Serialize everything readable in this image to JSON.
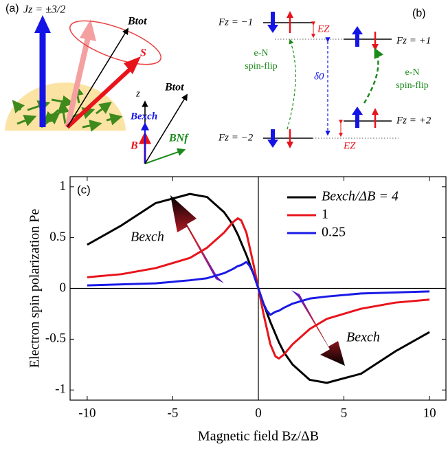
{
  "panel_a": {
    "label": "(a)",
    "jz": "Jz = ±3/2",
    "btot": "Btot",
    "s": "S",
    "z": "z",
    "btot_inset": "Btot",
    "bexch": "Bexch",
    "b": "B",
    "bnf": "BNf"
  },
  "panel_b": {
    "label": "(b)",
    "fz_m1": "Fz = −1",
    "fz_p1": "Fz = +1",
    "fz_m2": "Fz = −2",
    "fz_p2": "Fz = +2",
    "ez_top": "EZ",
    "ez_bottom": "EZ",
    "flip_left": [
      "e-N",
      "spin-flip"
    ],
    "flip_right": [
      "e-N",
      "spin-flip"
    ],
    "delta": "δ0"
  },
  "chart_data": {
    "type": "line",
    "panel_label": "(c)",
    "x_label": "Magnetic field Bz/ΔB",
    "y_label": "Electron spin polarization Pe",
    "annotations": [
      "Bexch",
      "Bexch"
    ],
    "x": [
      -10,
      -8,
      -6,
      -4,
      -3,
      -2,
      -1.5,
      -1.2,
      -1,
      -0.7,
      -0.5,
      -0.3,
      0,
      0.3,
      0.5,
      0.7,
      1,
      1.2,
      1.5,
      2,
      3,
      4,
      6,
      8,
      10
    ],
    "series": [
      {
        "name": "Bexch/ΔB = 4",
        "color": "#000000",
        "values": [
          0.43,
          0.62,
          0.84,
          0.93,
          0.9,
          0.75,
          0.63,
          0.53,
          0.45,
          0.33,
          0.24,
          0.15,
          0,
          -0.15,
          -0.24,
          -0.33,
          -0.45,
          -0.53,
          -0.63,
          -0.75,
          -0.9,
          -0.93,
          -0.84,
          -0.62,
          -0.43
        ]
      },
      {
        "name": "1",
        "color": "#e8141c",
        "values": [
          0.11,
          0.14,
          0.2,
          0.3,
          0.4,
          0.55,
          0.65,
          0.69,
          0.67,
          0.55,
          0.4,
          0.25,
          0,
          -0.25,
          -0.4,
          -0.55,
          -0.67,
          -0.69,
          -0.65,
          -0.55,
          -0.4,
          -0.3,
          -0.2,
          -0.14,
          -0.11
        ]
      },
      {
        "name": "0.25",
        "color": "#1a1ae6",
        "values": [
          0.03,
          0.04,
          0.05,
          0.08,
          0.1,
          0.15,
          0.19,
          0.22,
          0.23,
          0.26,
          0.22,
          0.15,
          0,
          -0.15,
          -0.22,
          -0.26,
          -0.23,
          -0.22,
          -0.19,
          -0.15,
          -0.1,
          -0.08,
          -0.05,
          -0.04,
          -0.03
        ]
      }
    ],
    "xlim": [
      -11,
      11
    ],
    "ylim": [
      -1.1,
      1.1
    ],
    "xticks": [
      -10,
      -5,
      0,
      5,
      10
    ],
    "yticks": [
      -1,
      -0.5,
      0,
      0.5,
      1
    ],
    "legend": "upper right"
  }
}
